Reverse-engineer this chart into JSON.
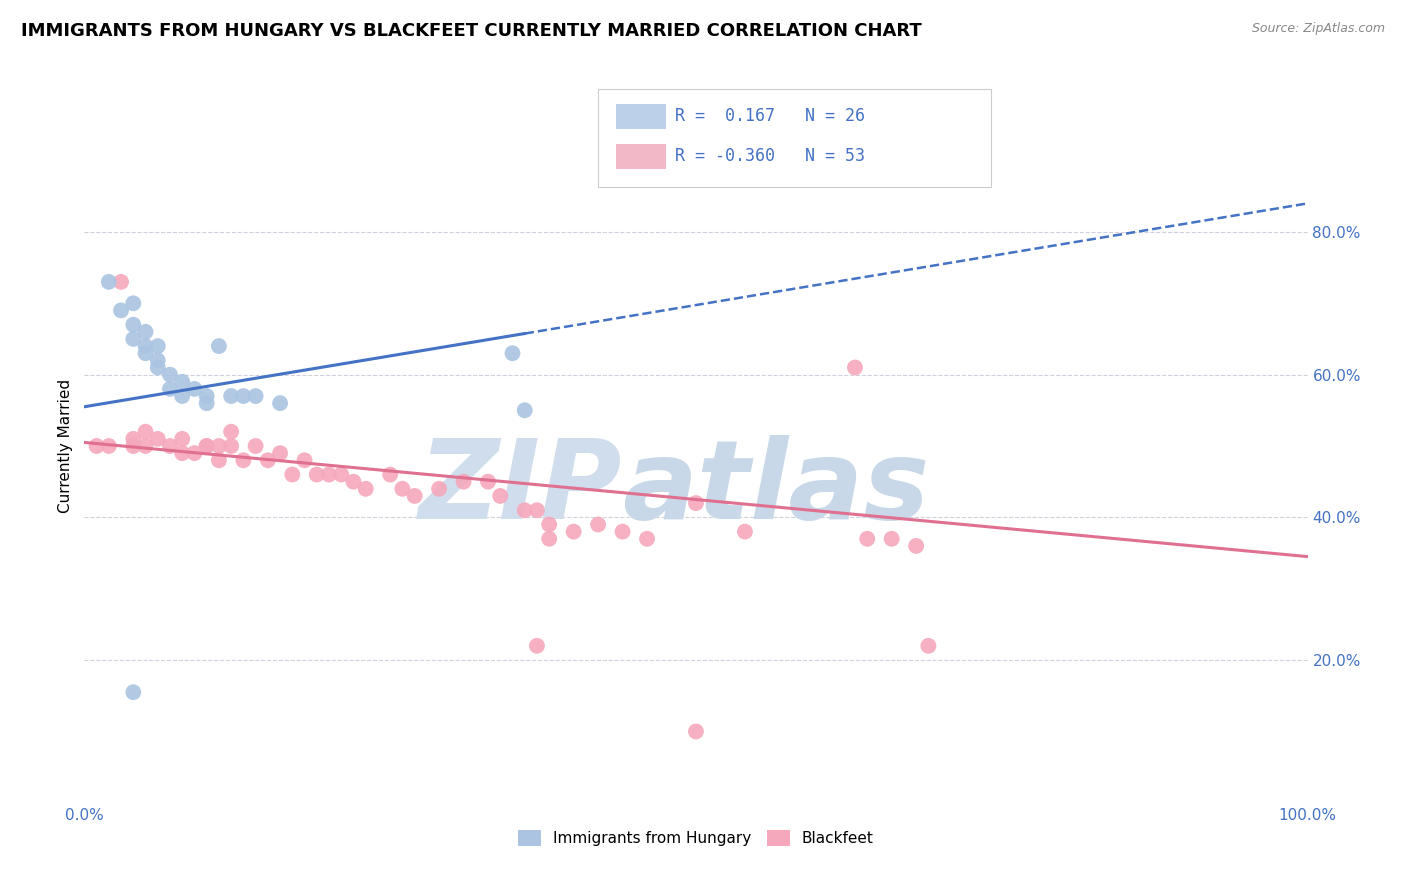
{
  "title": "IMMIGRANTS FROM HUNGARY VS BLACKFEET CURRENTLY MARRIED CORRELATION CHART",
  "source_text": "Source: ZipAtlas.com",
  "ylabel": "Currently Married",
  "x_min": 0.0,
  "x_max": 1.0,
  "y_min": 0.0,
  "y_max": 1.0,
  "y_ticks": [
    0.2,
    0.4,
    0.6,
    0.8
  ],
  "y_tick_labels": [
    "20.0%",
    "40.0%",
    "60.0%",
    "80.0%"
  ],
  "blue_R": 0.167,
  "blue_N": 26,
  "pink_R": -0.36,
  "pink_N": 53,
  "blue_color": "#aac4e2",
  "pink_color": "#f5a8bc",
  "blue_line_color": "#4472C4",
  "pink_line_color": "#e07090",
  "grid_color": "#d0d0de",
  "tick_color": "#4472C4",
  "legend_box_blue": "#bdd0ea",
  "legend_box_pink": "#f2b8c8",
  "blue_scatter_x": [
    0.02,
    0.03,
    0.04,
    0.04,
    0.04,
    0.05,
    0.05,
    0.05,
    0.06,
    0.06,
    0.06,
    0.07,
    0.07,
    0.08,
    0.08,
    0.09,
    0.1,
    0.1,
    0.11,
    0.12,
    0.13,
    0.14,
    0.16,
    0.35,
    0.36,
    0.04
  ],
  "blue_scatter_y": [
    0.73,
    0.69,
    0.7,
    0.67,
    0.65,
    0.66,
    0.64,
    0.63,
    0.64,
    0.62,
    0.61,
    0.6,
    0.58,
    0.59,
    0.57,
    0.58,
    0.57,
    0.56,
    0.64,
    0.57,
    0.57,
    0.57,
    0.56,
    0.63,
    0.55,
    0.155
  ],
  "pink_scatter_x": [
    0.01,
    0.02,
    0.03,
    0.04,
    0.04,
    0.05,
    0.05,
    0.06,
    0.07,
    0.08,
    0.08,
    0.09,
    0.1,
    0.1,
    0.11,
    0.11,
    0.12,
    0.12,
    0.13,
    0.14,
    0.15,
    0.16,
    0.17,
    0.18,
    0.19,
    0.2,
    0.21,
    0.22,
    0.23,
    0.25,
    0.26,
    0.27,
    0.29,
    0.31,
    0.33,
    0.34,
    0.36,
    0.37,
    0.38,
    0.38,
    0.4,
    0.42,
    0.44,
    0.46,
    0.5,
    0.54,
    0.63,
    0.64,
    0.66,
    0.68,
    0.69,
    0.37,
    0.5
  ],
  "pink_scatter_y": [
    0.5,
    0.5,
    0.73,
    0.51,
    0.5,
    0.52,
    0.5,
    0.51,
    0.5,
    0.51,
    0.49,
    0.49,
    0.5,
    0.5,
    0.5,
    0.48,
    0.52,
    0.5,
    0.48,
    0.5,
    0.48,
    0.49,
    0.46,
    0.48,
    0.46,
    0.46,
    0.46,
    0.45,
    0.44,
    0.46,
    0.44,
    0.43,
    0.44,
    0.45,
    0.45,
    0.43,
    0.41,
    0.41,
    0.39,
    0.37,
    0.38,
    0.39,
    0.38,
    0.37,
    0.42,
    0.38,
    0.61,
    0.37,
    0.37,
    0.36,
    0.22,
    0.22,
    0.1
  ],
  "blue_line_x0": 0.0,
  "blue_line_x_solid_end": 0.36,
  "blue_line_x1": 1.0,
  "blue_line_y0": 0.555,
  "blue_line_y1": 0.84,
  "pink_line_x0": 0.0,
  "pink_line_x1": 1.0,
  "pink_line_y0": 0.505,
  "pink_line_y1": 0.345,
  "title_fontsize": 13,
  "tick_fontsize": 11,
  "axis_label_fontsize": 11,
  "legend_fontsize": 12,
  "watermark_text1": "ZIP",
  "watermark_text2": "atlas"
}
